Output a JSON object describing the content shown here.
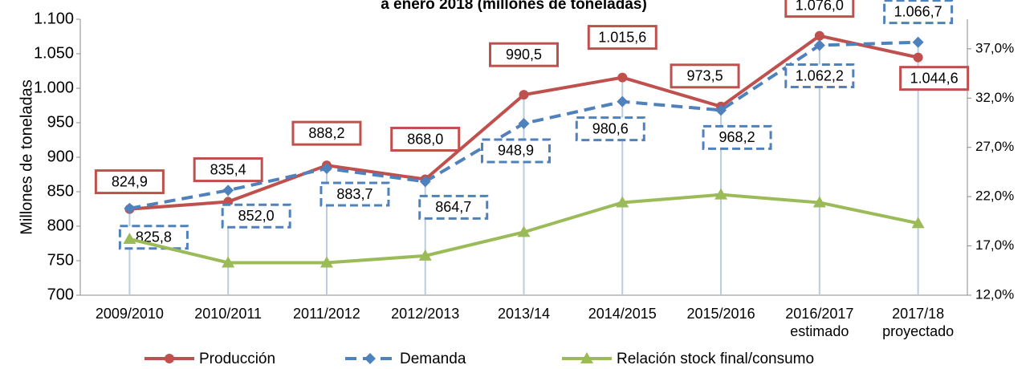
{
  "chart_data": {
    "type": "line",
    "title": "a enero 2018 (millones de toneladas)",
    "y_label": "Millones de toneladas",
    "categories": [
      "2009/2010",
      "2010/2011",
      "2011/2012",
      "2012/2013",
      "2013/14",
      "2014/2015",
      "2015/2016",
      "2016/2017\nestimado",
      "2017/18\nproyectado"
    ],
    "ylim": [
      700,
      1100
    ],
    "yticks": [
      700,
      750,
      800,
      850,
      900,
      950,
      {
        "value": 1000,
        "label": "1.000"
      },
      {
        "value": 1050,
        "label": "1.050"
      },
      {
        "value": 1100,
        "label": "1.100"
      }
    ],
    "y2lim": [
      12,
      40
    ],
    "y2ticks": [
      {
        "value": 12,
        "label": "12,0%"
      },
      {
        "value": 17,
        "label": "17,0%"
      },
      {
        "value": 22,
        "label": "22,0%"
      },
      {
        "value": 27,
        "label": "27,0%"
      },
      {
        "value": 32,
        "label": "32,0%"
      },
      {
        "value": 37,
        "label": "37,0%"
      }
    ],
    "legend": "bottom",
    "series": [
      {
        "name": "Producción",
        "color": "#c0504d",
        "marker": "circle",
        "dash": false,
        "values": [
          824.9,
          835.4,
          888.2,
          868.0,
          990.5,
          1015.6,
          973.5,
          1076.0,
          1044.6
        ],
        "value_labels": [
          "824,9",
          "835,4",
          "888,2",
          "868,0",
          "990,5",
          "1.015,6",
          "973,5",
          "1.076,0",
          "1.044,6"
        ]
      },
      {
        "name": "Demanda",
        "color": "#4f81bd",
        "marker": "diamond",
        "dash": true,
        "values": [
          825.8,
          852.0,
          883.7,
          864.7,
          948.9,
          980.6,
          968.2,
          1062.2,
          1066.7
        ],
        "value_labels": [
          "825,8",
          "852,0",
          "883,7",
          "864,7",
          "948,9",
          "980,6",
          "968,2",
          "1.062,2",
          "1.066,7"
        ]
      },
      {
        "name": "Relación stock final/consumo",
        "color": "#9bbb59",
        "marker": "triangle",
        "dash": false,
        "axis": "y2",
        "values": [
          17.7,
          15.3,
          15.3,
          16.0,
          18.4,
          21.4,
          22.2,
          21.4,
          19.3
        ]
      }
    ]
  }
}
